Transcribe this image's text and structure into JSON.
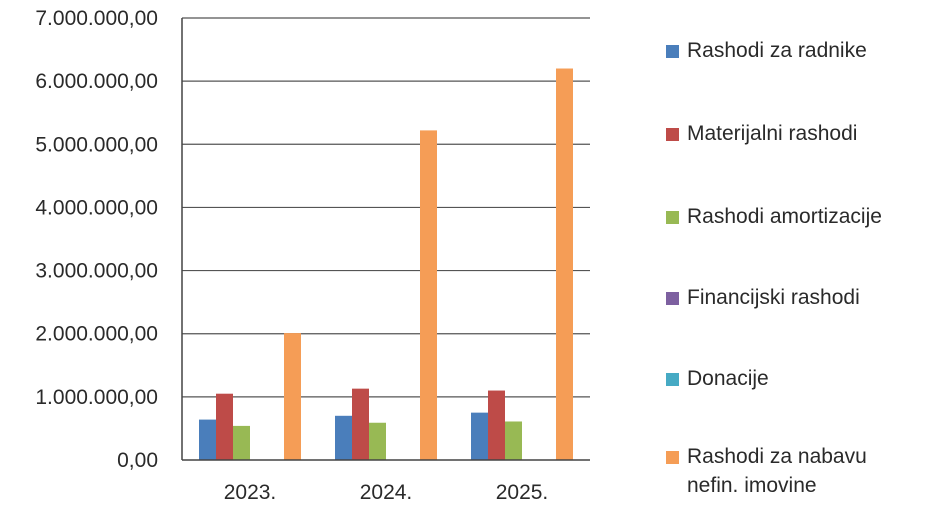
{
  "chart_data": {
    "type": "bar",
    "title": "",
    "xlabel": "",
    "ylabel": "",
    "categories": [
      "2023.",
      "2024.",
      "2025."
    ],
    "ylim": [
      0,
      7000000
    ],
    "yticks": [
      0,
      1000000,
      2000000,
      3000000,
      4000000,
      5000000,
      6000000,
      7000000
    ],
    "ytick_labels": [
      "0,00",
      "1.000.000,00",
      "2.000.000,00",
      "3.000.000,00",
      "4.000.000,00",
      "5.000.000,00",
      "6.000.000,00",
      "7.000.000,00"
    ],
    "grid": true,
    "legend_position": "right",
    "series": [
      {
        "name": "Rashodi za radnike",
        "color": "#4a7ebb",
        "values": [
          640000,
          700000,
          750000
        ]
      },
      {
        "name": "Materijalni rashodi",
        "color": "#be4b48",
        "values": [
          1050000,
          1130000,
          1100000
        ]
      },
      {
        "name": "Rashodi amortizacije",
        "color": "#98b954",
        "values": [
          540000,
          590000,
          610000
        ]
      },
      {
        "name": "Financijski rashodi",
        "color": "#7d60a0",
        "values": [
          0,
          0,
          0
        ]
      },
      {
        "name": "Donacije",
        "color": "#46aac4",
        "values": [
          0,
          0,
          0
        ]
      },
      {
        "name": "Rashodi za nabavu\nnefin. imovine",
        "color": "#f59d56",
        "values": [
          2010000,
          5220000,
          6200000
        ]
      }
    ]
  }
}
